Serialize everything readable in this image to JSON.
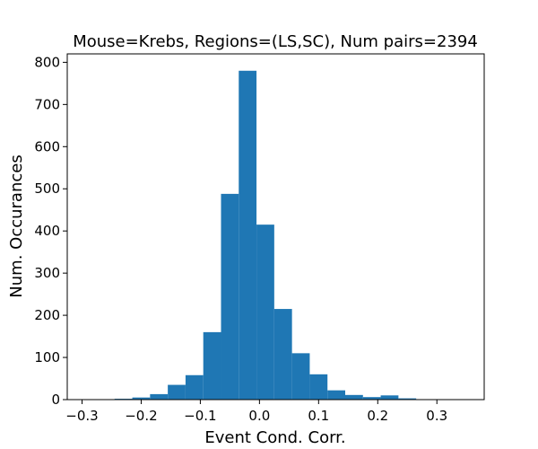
{
  "chart_data": {
    "type": "bar",
    "title": "Mouse=Krebs, Regions=(LS,SC), Num pairs=2394",
    "xlabel": "Event Cond. Corr.",
    "ylabel": "Num. Occurances",
    "xlim": [
      -0.325,
      0.38
    ],
    "ylim": [
      0,
      820
    ],
    "xticks": [
      -0.3,
      -0.2,
      -0.1,
      0.0,
      0.1,
      0.2,
      0.3
    ],
    "xtick_labels": [
      "−0.3",
      "−0.2",
      "−0.1",
      "0.0",
      "0.1",
      "0.2",
      "0.3"
    ],
    "yticks": [
      0,
      100,
      200,
      300,
      400,
      500,
      600,
      700,
      800
    ],
    "ytick_labels": [
      "0",
      "100",
      "200",
      "300",
      "400",
      "500",
      "600",
      "700",
      "800"
    ],
    "bar_color": "#1f77b4",
    "bins": [
      {
        "x0": -0.305,
        "x1": -0.275,
        "value": 1
      },
      {
        "x0": -0.275,
        "x1": -0.245,
        "value": 0
      },
      {
        "x0": -0.245,
        "x1": -0.215,
        "value": 2
      },
      {
        "x0": -0.215,
        "x1": -0.185,
        "value": 5
      },
      {
        "x0": -0.185,
        "x1": -0.155,
        "value": 13
      },
      {
        "x0": -0.155,
        "x1": -0.125,
        "value": 35
      },
      {
        "x0": -0.125,
        "x1": -0.095,
        "value": 58
      },
      {
        "x0": -0.095,
        "x1": -0.065,
        "value": 160
      },
      {
        "x0": -0.065,
        "x1": -0.035,
        "value": 488
      },
      {
        "x0": -0.035,
        "x1": -0.005,
        "value": 780
      },
      {
        "x0": -0.005,
        "x1": 0.025,
        "value": 415
      },
      {
        "x0": 0.025,
        "x1": 0.055,
        "value": 215
      },
      {
        "x0": 0.055,
        "x1": 0.085,
        "value": 110
      },
      {
        "x0": 0.085,
        "x1": 0.115,
        "value": 60
      },
      {
        "x0": 0.115,
        "x1": 0.145,
        "value": 22
      },
      {
        "x0": 0.145,
        "x1": 0.175,
        "value": 11
      },
      {
        "x0": 0.175,
        "x1": 0.205,
        "value": 6
      },
      {
        "x0": 0.205,
        "x1": 0.235,
        "value": 10
      },
      {
        "x0": 0.235,
        "x1": 0.265,
        "value": 3
      },
      {
        "x0": 0.265,
        "x1": 0.295,
        "value": 1
      },
      {
        "x0": 0.295,
        "x1": 0.325,
        "value": 0
      },
      {
        "x0": 0.325,
        "x1": 0.355,
        "value": 0
      }
    ]
  }
}
